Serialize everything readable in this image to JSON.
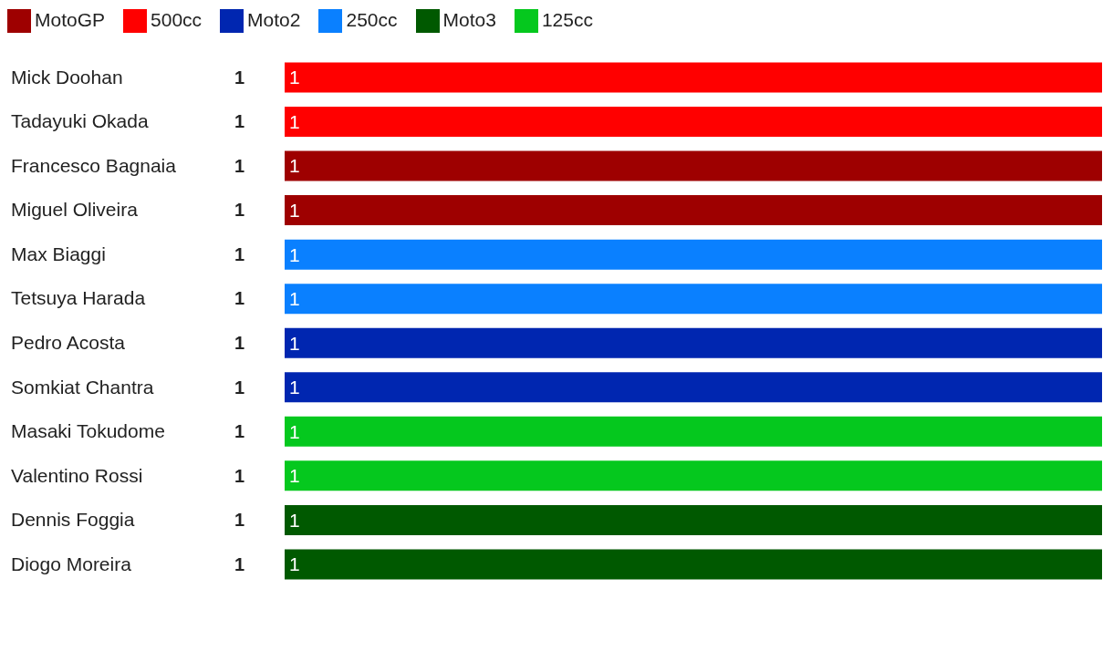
{
  "chart_data": {
    "type": "bar",
    "orientation": "horizontal",
    "stacked": true,
    "categories": [
      "Mick Doohan",
      "Tadayuki Okada",
      "Francesco Bagnaia",
      "Miguel Oliveira",
      "Max Biaggi",
      "Tetsuya Harada",
      "Pedro Acosta",
      "Somkiat Chantra",
      "Masaki Tokudome",
      "Valentino Rossi",
      "Dennis Foggia",
      "Diogo Moreira"
    ],
    "series": [
      {
        "name": "MotoGP",
        "color": "#9e0000",
        "values": [
          null,
          null,
          1,
          1,
          null,
          null,
          null,
          null,
          null,
          null,
          null,
          null
        ]
      },
      {
        "name": "500cc",
        "color": "#ff0000",
        "values": [
          1,
          1,
          null,
          null,
          null,
          null,
          null,
          null,
          null,
          null,
          null,
          null
        ]
      },
      {
        "name": "Moto2",
        "color": "#0026b0",
        "values": [
          null,
          null,
          null,
          null,
          null,
          null,
          1,
          1,
          null,
          null,
          null,
          null
        ]
      },
      {
        "name": "250cc",
        "color": "#0a80ff",
        "values": [
          null,
          null,
          null,
          null,
          1,
          1,
          null,
          null,
          null,
          null,
          null,
          null
        ]
      },
      {
        "name": "Moto3",
        "color": "#005900",
        "values": [
          null,
          null,
          null,
          null,
          null,
          null,
          null,
          null,
          null,
          null,
          1,
          1
        ]
      },
      {
        "name": "125cc",
        "color": "#05c81e",
        "values": [
          null,
          null,
          null,
          null,
          null,
          null,
          null,
          null,
          1,
          1,
          null,
          null
        ]
      }
    ],
    "totals": [
      "1",
      "1",
      "1",
      "1",
      "1",
      "1",
      "1",
      "1",
      "1",
      "1",
      "1",
      "1"
    ],
    "tick_labels": "y",
    "data_labels": true,
    "grid": false,
    "legend": "top left"
  }
}
